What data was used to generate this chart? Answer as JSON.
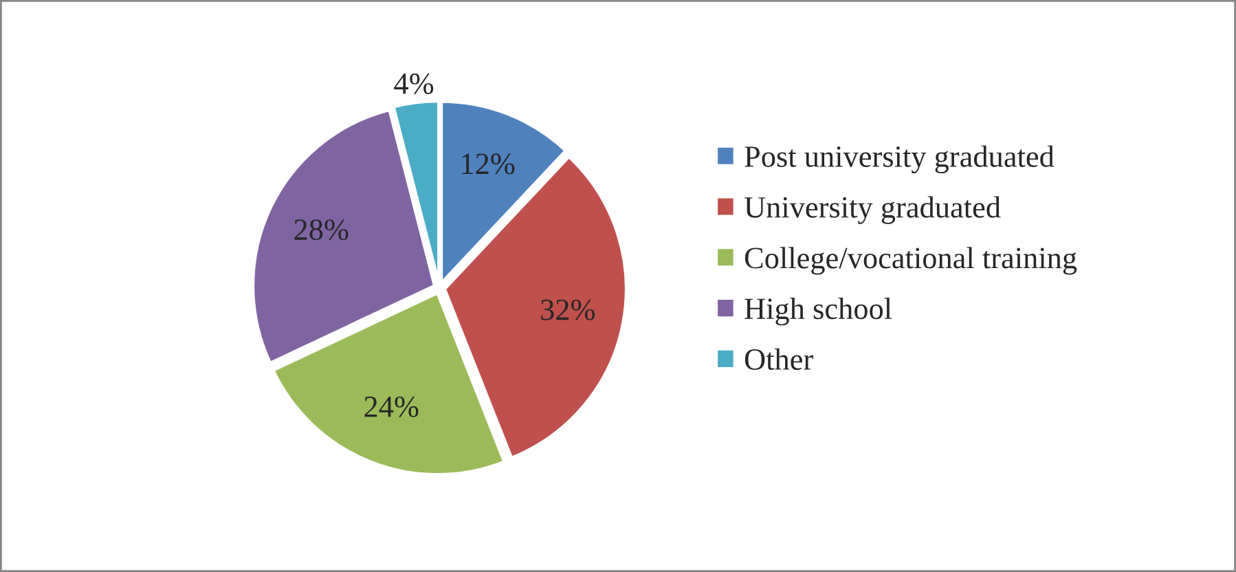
{
  "chart_data": {
    "type": "pie",
    "categories": [
      "Post university graduated",
      "University graduated",
      "College/vocational training",
      "High school",
      "Other"
    ],
    "values": [
      12,
      32,
      24,
      28,
      4
    ],
    "colors": [
      "#4f81bd",
      "#c0504d",
      "#9bbb59",
      "#8064a2",
      "#4bacc6"
    ],
    "value_labels": [
      "12%",
      "32%",
      "24%",
      "28%",
      "4%"
    ],
    "legend": "right"
  }
}
